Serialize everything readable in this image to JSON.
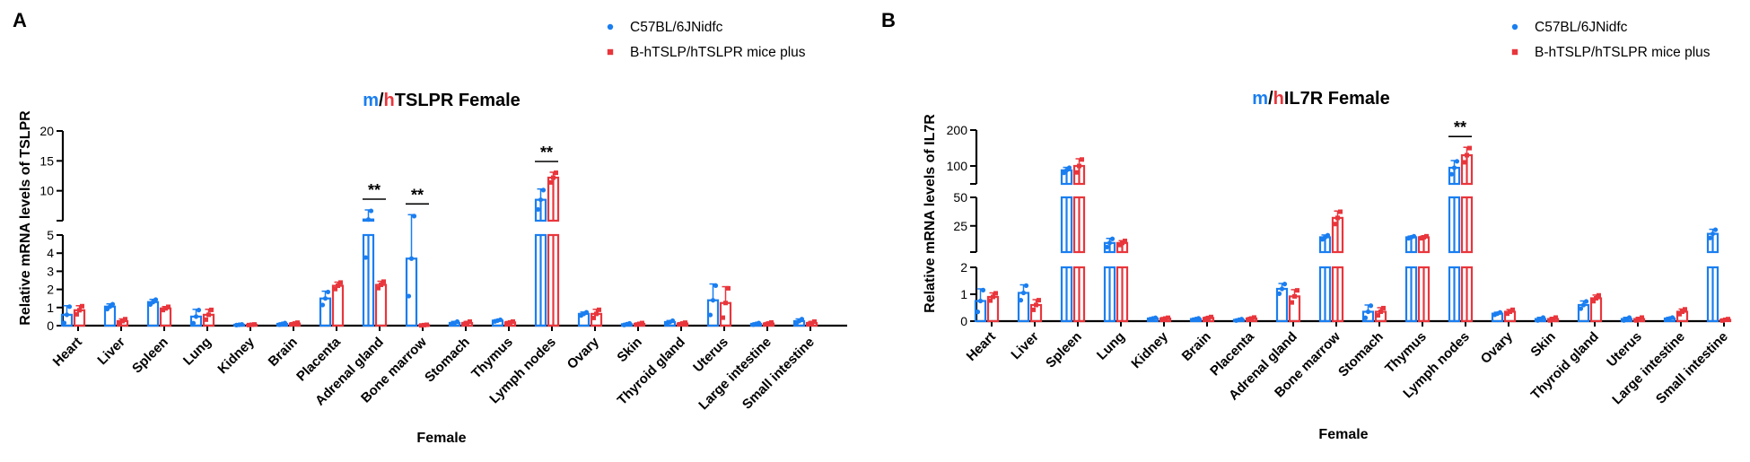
{
  "legend": [
    {
      "name": "C57BL/6JNidfc",
      "color": "#1a7ef0",
      "marker": "circle"
    },
    {
      "name": "B-hTSLP/hTSLPR mice plus",
      "color": "#e8363c",
      "marker": "square"
    }
  ],
  "chart_data": [
    {
      "panel": "A",
      "type": "bar",
      "title_parts": [
        {
          "text": "m",
          "color": "#1a7ef0"
        },
        {
          "text": "/",
          "color": "#000000"
        },
        {
          "text": "h",
          "color": "#e8363c"
        },
        {
          "text": "TSLPR Female",
          "color": "#000000"
        }
      ],
      "xlabel": "Female",
      "ylabel": "Relative mRNA levels of TSLPR",
      "y_broken": true,
      "y_segments": [
        {
          "range": [
            0,
            5
          ],
          "ticks": [
            0,
            1,
            2,
            3,
            4,
            5
          ]
        },
        {
          "range": [
            5,
            20
          ],
          "ticks": [
            10,
            15,
            20
          ]
        }
      ],
      "categories": [
        "Heart",
        "Liver",
        "Spleen",
        "Lung",
        "Kidney",
        "Brain",
        "Placenta",
        "Adrenal gland",
        "Bone marrow",
        "Stomach",
        "Thymus",
        "Lymph nodes",
        "Ovary",
        "Skin",
        "Thyroid gland",
        "Uterus",
        "Large intestine",
        "Small intestine"
      ],
      "series": [
        {
          "name": "C57BL/6JNidfc",
          "values": [
            0.6,
            1.05,
            1.3,
            0.5,
            0.05,
            0.1,
            1.5,
            5.2,
            3.7,
            0.15,
            0.28,
            8.5,
            0.65,
            0.08,
            0.2,
            1.4,
            0.1,
            0.25
          ],
          "errors": [
            0.5,
            0.15,
            0.15,
            0.4,
            0.02,
            0.05,
            0.4,
            1.6,
            2.3,
            0.08,
            0.05,
            1.8,
            0.1,
            0.05,
            0.08,
            0.9,
            0.05,
            0.12
          ]
        },
        {
          "name": "B-hTSLP/hTSLPR mice plus",
          "values": [
            0.85,
            0.25,
            0.95,
            0.6,
            0.05,
            0.12,
            2.2,
            2.25,
            0.03,
            0.15,
            0.18,
            12.2,
            0.65,
            0.1,
            0.12,
            1.25,
            0.12,
            0.15
          ],
          "errors": [
            0.25,
            0.12,
            0.1,
            0.3,
            0.02,
            0.05,
            0.2,
            0.2,
            0.02,
            0.08,
            0.05,
            0.9,
            0.25,
            0.05,
            0.05,
            0.9,
            0.06,
            0.08
          ]
        }
      ],
      "significance": [
        {
          "category": "Adrenal gland",
          "label": "**"
        },
        {
          "category": "Bone marrow",
          "label": "**"
        },
        {
          "category": "Lymph nodes",
          "label": "**"
        }
      ]
    },
    {
      "panel": "B",
      "type": "bar",
      "title_parts": [
        {
          "text": "m",
          "color": "#1a7ef0"
        },
        {
          "text": "/",
          "color": "#000000"
        },
        {
          "text": "h",
          "color": "#e8363c"
        },
        {
          "text": "IL7R Female",
          "color": "#000000"
        }
      ],
      "xlabel": "Female",
      "ylabel": "Relative mRNA levels of IL7R",
      "y_broken": true,
      "y_segments": [
        {
          "range": [
            0,
            2
          ],
          "ticks": [
            0,
            1,
            2
          ]
        },
        {
          "range": [
            2,
            50
          ],
          "ticks": [
            25,
            50
          ]
        },
        {
          "range": [
            50,
            200
          ],
          "ticks": [
            100,
            200
          ]
        }
      ],
      "categories": [
        "Heart",
        "Liver",
        "Spleen",
        "Lung",
        "Kidney",
        "Brain",
        "Placenta",
        "Adrenal gland",
        "Bone marrow",
        "Stomach",
        "Thymus",
        "Lymph nodes",
        "Ovary",
        "Skin",
        "Thyroid gland",
        "Uterus",
        "Large intestine",
        "Small intestine"
      ],
      "series": [
        {
          "name": "C57BL/6JNidfc",
          "values": [
            0.75,
            1.05,
            88,
            10,
            0.1,
            0.08,
            0.05,
            1.2,
            15,
            0.35,
            15,
            95,
            0.28,
            0.08,
            0.6,
            0.08,
            0.1,
            18
          ],
          "errors": [
            0.45,
            0.3,
            8,
            4,
            0.03,
            0.03,
            0.03,
            0.2,
            2,
            0.25,
            1,
            20,
            0.05,
            0.06,
            0.15,
            0.06,
            0.04,
            4
          ]
        },
        {
          "name": "B-hTSLP/hTSLPR mice plus",
          "values": [
            0.9,
            0.6,
            100,
            10,
            0.1,
            0.12,
            0.1,
            0.92,
            32,
            0.35,
            15,
            130,
            0.35,
            0.08,
            0.85,
            0.08,
            0.35,
            0.05
          ],
          "errors": [
            0.15,
            0.2,
            20,
            2,
            0.03,
            0.04,
            0.04,
            0.25,
            6,
            0.15,
            1,
            22,
            0.08,
            0.06,
            0.12,
            0.06,
            0.1,
            0.03
          ]
        }
      ],
      "significance": [
        {
          "category": "Lymph nodes",
          "label": "**"
        }
      ]
    }
  ]
}
